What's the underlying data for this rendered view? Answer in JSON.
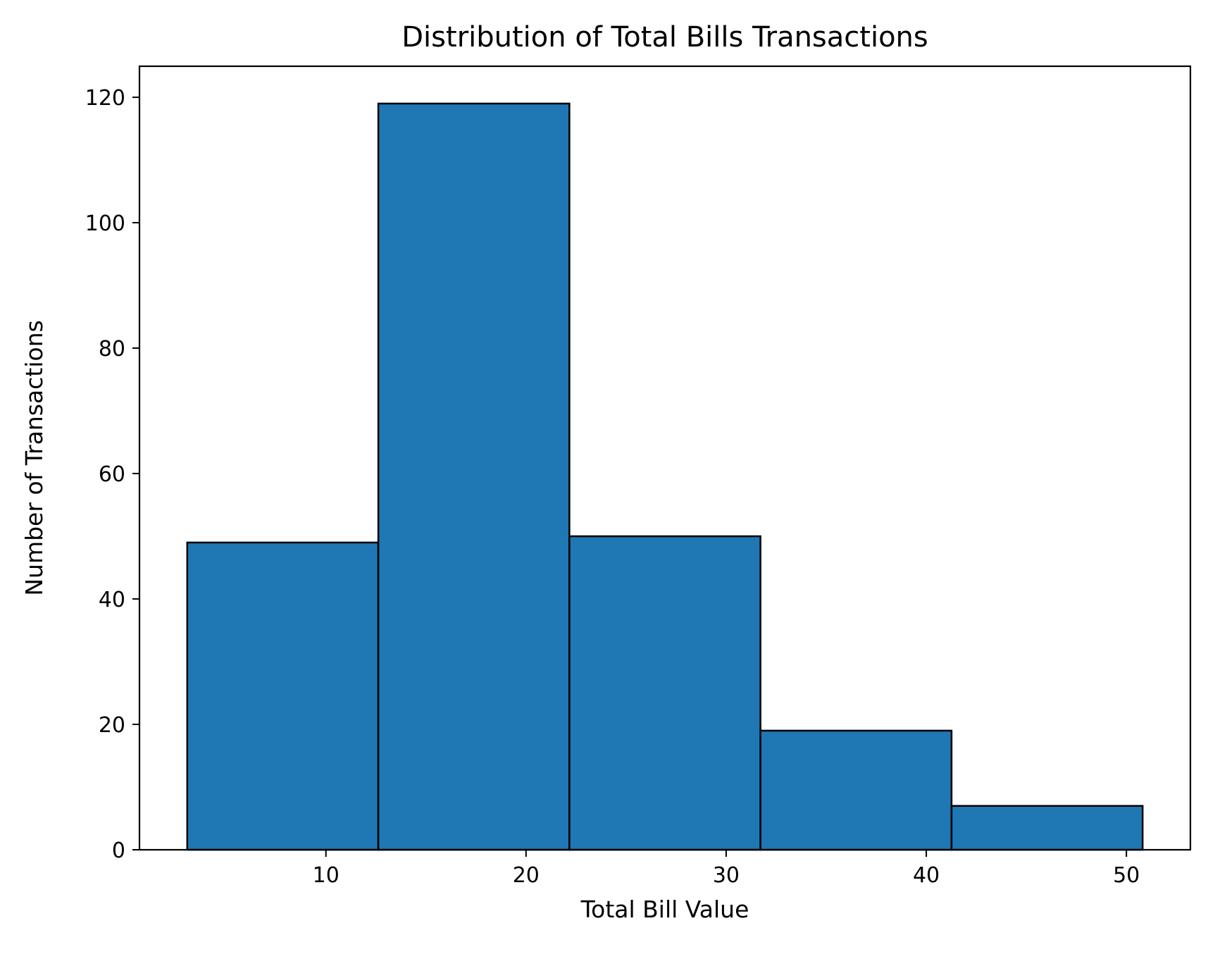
{
  "chart_data": {
    "type": "bar",
    "title": "Distribution of Total Bills Transactions",
    "xlabel": "Total Bill Value",
    "ylabel": "Number of Transactions",
    "bins": [
      {
        "start": 3.07,
        "end": 12.618,
        "count": 49
      },
      {
        "start": 12.618,
        "end": 22.166,
        "count": 119
      },
      {
        "start": 22.166,
        "end": 31.714,
        "count": 50
      },
      {
        "start": 31.714,
        "end": 41.262,
        "count": 19
      },
      {
        "start": 41.262,
        "end": 50.81,
        "count": 7
      }
    ],
    "xlim": [
      0.683,
      53.197
    ],
    "ylim": [
      0,
      124.95
    ],
    "xticks": [
      10,
      20,
      30,
      40,
      50
    ],
    "yticks": [
      0,
      20,
      40,
      60,
      80,
      100,
      120
    ],
    "grid": false,
    "bar_color": "#1f77b4",
    "edge_color": "#000000"
  }
}
